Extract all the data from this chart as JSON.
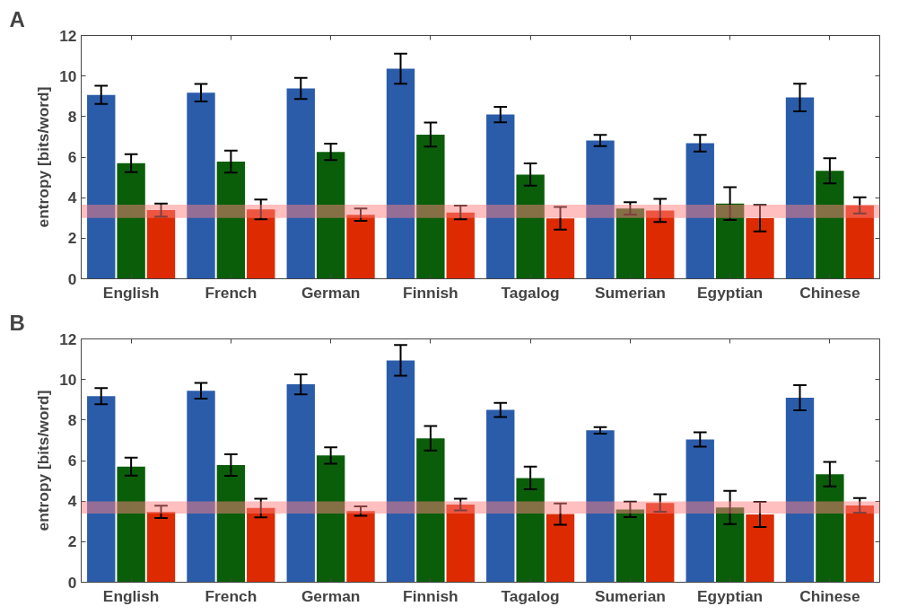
{
  "chart_data": [
    {
      "type": "bar",
      "title": "A",
      "ylabel": "entropy [bits/word]",
      "categories": [
        "English",
        "French",
        "German",
        "Finnish",
        "Tagalog",
        "Sumerian",
        "Egyptian",
        "Chinese"
      ],
      "ylim": [
        0,
        12
      ],
      "yticks": [
        0,
        2,
        4,
        6,
        8,
        10,
        12
      ],
      "grid": false,
      "series": [
        {
          "color": "#2a5caa",
          "values": [
            9.07,
            9.18,
            9.39,
            10.36,
            8.1,
            6.82,
            6.69,
            8.94
          ],
          "errors": [
            0.45,
            0.43,
            0.52,
            0.74,
            0.38,
            0.28,
            0.41,
            0.68
          ]
        },
        {
          "color": "#0a5e0a",
          "values": [
            5.7,
            5.78,
            6.26,
            7.11,
            5.14,
            3.47,
            3.71,
            5.32
          ],
          "errors": [
            0.44,
            0.54,
            0.4,
            0.59,
            0.55,
            0.3,
            0.81,
            0.62
          ]
        },
        {
          "color": "#dd2a00",
          "values": [
            3.39,
            3.42,
            3.16,
            3.27,
            2.98,
            3.37,
            2.99,
            3.62
          ],
          "errors": [
            0.32,
            0.49,
            0.3,
            0.34,
            0.56,
            0.57,
            0.65,
            0.4
          ]
        }
      ],
      "bands": [
        {
          "axis": "y",
          "from": 3.0,
          "to": 3.65,
          "color": "#ff8080"
        }
      ]
    },
    {
      "type": "bar",
      "title": "B",
      "ylabel": "entropy [bits/word]",
      "categories": [
        "English",
        "French",
        "German",
        "Finnish",
        "Tagalog",
        "Sumerian",
        "Egyptian",
        "Chinese"
      ],
      "ylim": [
        0,
        12
      ],
      "yticks": [
        0,
        2,
        4,
        6,
        8,
        10,
        12
      ],
      "grid": false,
      "series": [
        {
          "color": "#2a5caa",
          "values": [
            9.18,
            9.44,
            9.76,
            10.94,
            8.5,
            7.49,
            7.04,
            9.1
          ],
          "errors": [
            0.4,
            0.39,
            0.49,
            0.76,
            0.35,
            0.16,
            0.35,
            0.62
          ]
        },
        {
          "color": "#0a5e0a",
          "values": [
            5.7,
            5.78,
            6.25,
            7.1,
            5.14,
            3.59,
            3.69,
            5.33
          ],
          "errors": [
            0.44,
            0.53,
            0.4,
            0.6,
            0.56,
            0.38,
            0.82,
            0.6
          ]
        },
        {
          "color": "#dd2a00",
          "values": [
            3.47,
            3.66,
            3.51,
            3.83,
            3.36,
            3.91,
            3.34,
            3.79
          ],
          "errors": [
            0.3,
            0.46,
            0.23,
            0.29,
            0.53,
            0.43,
            0.62,
            0.36
          ]
        }
      ],
      "bands": [
        {
          "axis": "y",
          "from": 3.39,
          "to": 3.98,
          "color": "#ff8080"
        }
      ]
    }
  ]
}
